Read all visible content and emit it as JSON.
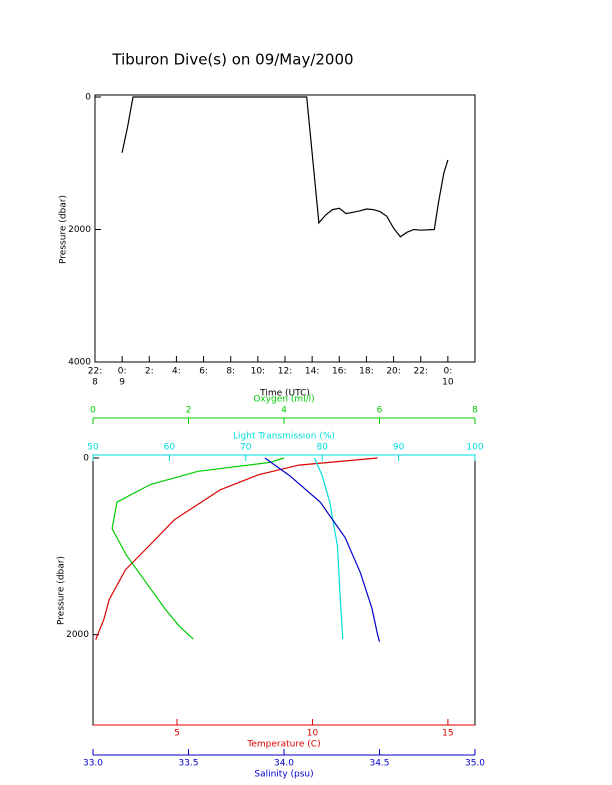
{
  "chart_data": [
    {
      "type": "line",
      "title": "Tiburon Dive(s) on 09/May/2000",
      "x_label": "Time (UTC)",
      "y_label": "Pressure (dbar)",
      "xlim": [
        -2,
        26
      ],
      "ylim": [
        0,
        4000
      ],
      "invert_y": true,
      "xticks": [
        {
          "value": -2,
          "label": "22:"
        },
        {
          "value": 0,
          "label": "0:"
        },
        {
          "value": 2,
          "label": "2:"
        },
        {
          "value": 4,
          "label": "4:"
        },
        {
          "value": 6,
          "label": "6:"
        },
        {
          "value": 8,
          "label": "8:"
        },
        {
          "value": 10,
          "label": "10:"
        },
        {
          "value": 12,
          "label": "12:"
        },
        {
          "value": 14,
          "label": "14:"
        },
        {
          "value": 16,
          "label": "16:"
        },
        {
          "value": 18,
          "label": "18:"
        },
        {
          "value": 20,
          "label": "20:"
        },
        {
          "value": 22,
          "label": "22:"
        },
        {
          "value": 24,
          "label": "0:"
        }
      ],
      "day_labels": [
        {
          "value": -2,
          "label": "8"
        },
        {
          "value": 0,
          "label": "9"
        },
        {
          "value": 24,
          "label": "10"
        }
      ],
      "yticks": [
        0,
        2000,
        4000
      ],
      "series": [
        {
          "color": "#000000",
          "x": [
            0,
            0.4,
            0.8,
            2,
            6,
            10,
            13.6,
            14.5,
            15,
            15.5,
            16,
            16.5,
            17,
            17.5,
            18,
            18.5,
            19,
            19.5,
            20,
            20.5,
            21,
            21.5,
            22,
            23,
            23.3,
            23.7,
            24
          ],
          "values": [
            840,
            450,
            0,
            0,
            0,
            0,
            0,
            1900,
            1780,
            1700,
            1680,
            1760,
            1740,
            1720,
            1690,
            1700,
            1730,
            1800,
            1980,
            2110,
            2040,
            2000,
            2010,
            2000,
            1600,
            1150,
            950
          ]
        }
      ]
    },
    {
      "type": "profile",
      "y_label": "Pressure (dbar)",
      "ylim": [
        0,
        3000
      ],
      "invert_y": true,
      "yticks": [
        0,
        2000
      ],
      "axes": [
        {
          "label": "Oxygen (ml/l)",
          "color": "#00cc00",
          "position": "top",
          "lim": [
            0,
            8
          ],
          "ticks": [
            0,
            2,
            4,
            6,
            8
          ]
        },
        {
          "label": "Light Transmission (%)",
          "color": "#00dddd",
          "position": "top",
          "lim": [
            50,
            100
          ],
          "ticks": [
            50,
            60,
            70,
            80,
            90,
            100
          ]
        },
        {
          "label": "Temperature (C)",
          "color": "#dd0000",
          "position": "bottom",
          "lim": [
            1.9,
            16
          ],
          "ticks": [
            5,
            10,
            15
          ]
        },
        {
          "label": "Salinity (psu)",
          "color": "#0000cc",
          "position": "bottom",
          "lim": [
            33,
            35
          ],
          "ticks": [
            {
              "value": 33,
              "label": "33.0"
            },
            {
              "value": 33.5,
              "label": "33.5"
            },
            {
              "value": 34,
              "label": "34.0"
            },
            {
              "value": 34.5,
              "label": "34.5"
            },
            {
              "value": 35,
              "label": "35.0"
            }
          ]
        }
      ],
      "series": [
        {
          "axis": 2,
          "color": "#dd0000",
          "x": [
            12.4,
            9.5,
            8.0,
            6.6,
            4.9,
            4.0,
            3.1,
            2.5,
            2.3,
            2.0
          ],
          "values": [
            0,
            80,
            190,
            360,
            700,
            985,
            1265,
            1600,
            1830,
            2055
          ]
        },
        {
          "axis": 0,
          "color": "#00cc00",
          "x": [
            4.0,
            3.7,
            2.2,
            1.2,
            0.5,
            0.4,
            0.7,
            1.1,
            1.5,
            1.8,
            2.0,
            2.1
          ],
          "values": [
            0,
            50,
            150,
            300,
            500,
            800,
            1100,
            1400,
            1700,
            1900,
            2000,
            2050
          ]
        },
        {
          "axis": 1,
          "color": "#00dddd",
          "x": [
            79,
            80,
            81,
            82,
            82.3,
            82.7
          ],
          "values": [
            0,
            200,
            500,
            1000,
            1500,
            2050
          ]
        },
        {
          "axis": 3,
          "color": "#0000cc",
          "x": [
            33.9,
            34.03,
            34.19,
            34.32,
            34.4,
            34.46,
            34.49,
            34.5
          ],
          "values": [
            0,
            200,
            500,
            900,
            1300,
            1700,
            2000,
            2080
          ]
        }
      ]
    }
  ]
}
